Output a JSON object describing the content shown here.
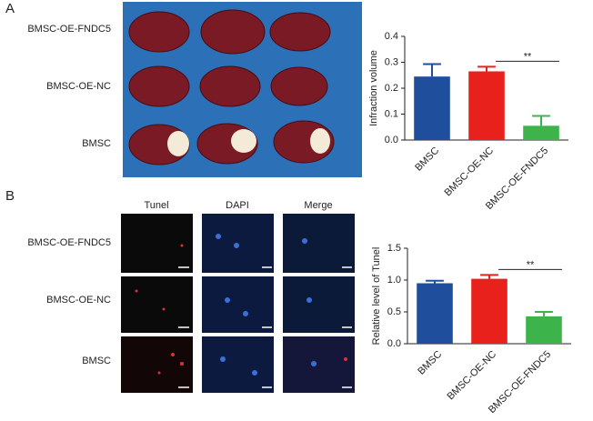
{
  "figure": {
    "panel_a": {
      "label": "A",
      "rows": [
        "BMSC-OE-FNDC5",
        "BMSC-OE-NC",
        "BMSC"
      ]
    },
    "panel_b": {
      "label": "B",
      "columns": [
        "Tunel",
        "DAPI",
        "Merge"
      ],
      "rows": [
        "BMSC-OE-FNDC5",
        "BMSC-OE-NC",
        "BMSC"
      ]
    }
  },
  "chart_data": [
    {
      "type": "bar",
      "ylabel": "Infraction volume",
      "categories": [
        "BMSC",
        "BMSC-OE-NC",
        "BMSC-OE-FNDC5"
      ],
      "values": [
        0.245,
        0.265,
        0.055
      ],
      "errors": [
        0.048,
        0.018,
        0.038
      ],
      "colors": [
        "#1f4e9c",
        "#e8211d",
        "#3cb44b"
      ],
      "ylim": [
        0,
        0.4
      ],
      "yticks": [
        {
          "value": 0,
          "label": "0.0"
        },
        0.1,
        0.2,
        0.3,
        0.4
      ],
      "annotation": {
        "text": "**",
        "from": 1,
        "to": 2
      }
    },
    {
      "type": "bar",
      "ylabel": "Relative level of Tunel",
      "categories": [
        "BMSC",
        "BMSC-OE-NC",
        "BMSC-OE-FNDC5"
      ],
      "values": [
        0.95,
        1.02,
        0.43
      ],
      "errors": [
        0.04,
        0.06,
        0.07
      ],
      "colors": [
        "#1f4e9c",
        "#e8211d",
        "#3cb44b"
      ],
      "ylim": [
        0,
        1.5
      ],
      "yticks": [
        {
          "value": 0,
          "label": "0.0"
        },
        {
          "value": 0.5,
          "label": "0.5"
        },
        {
          "value": 1,
          "label": "1.0"
        },
        {
          "value": 1.5,
          "label": "1.5"
        }
      ],
      "annotation": {
        "text": "**",
        "from": 1,
        "to": 2
      }
    }
  ]
}
